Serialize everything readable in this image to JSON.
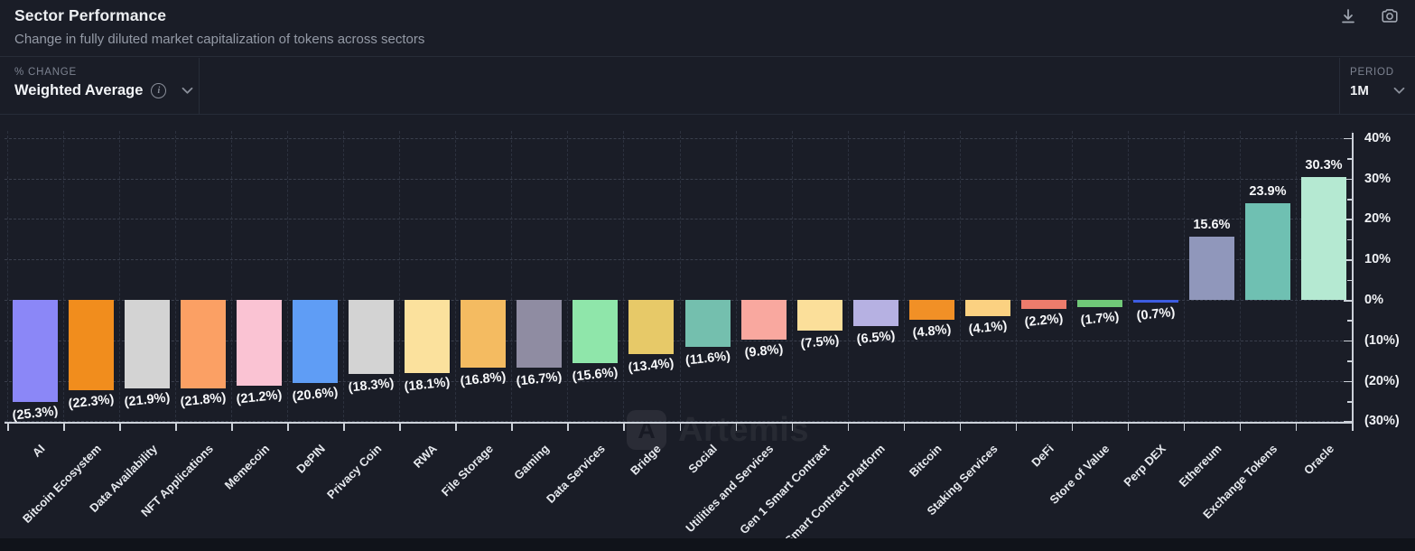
{
  "header": {
    "title": "Sector Performance",
    "subtitle": "Change in fully diluted market capitalization of tokens across sectors"
  },
  "controls": {
    "metric_label": "% CHANGE",
    "metric_value": "Weighted Average",
    "period_label": "PERIOD",
    "period_value": "1M"
  },
  "watermark": {
    "logo_letter": "A",
    "text": "Artemis"
  },
  "chart_data": {
    "type": "bar",
    "title": "Sector Performance",
    "xlabel": "",
    "ylabel": "% change",
    "ylim": [
      -30,
      40
    ],
    "grid": true,
    "legend": "none",
    "y_ticks": [
      {
        "v": 40,
        "label": "40%"
      },
      {
        "v": 30,
        "label": "30%"
      },
      {
        "v": 20,
        "label": "20%"
      },
      {
        "v": 10,
        "label": "10%"
      },
      {
        "v": 0,
        "label": "0%"
      },
      {
        "v": -10,
        "label": "(10%)"
      },
      {
        "v": -20,
        "label": "(20%)"
      },
      {
        "v": -30,
        "label": "(30%)"
      }
    ],
    "categories": [
      "AI",
      "Bitcoin Ecosystem",
      "Data Availability",
      "NFT Applications",
      "Memecoin",
      "DePIN",
      "Privacy Coin",
      "RWA",
      "File Storage",
      "Gaming",
      "Data Services",
      "Bridge",
      "Social",
      "Utilities and Services",
      "Gen 1 Smart Contract",
      "Smart Contract Platform",
      "Bitcoin",
      "Staking Services",
      "DeFi",
      "Store of Value",
      "Perp DEX",
      "Ethereum",
      "Exchange Tokens",
      "Oracle"
    ],
    "values": [
      -25.3,
      -22.3,
      -21.9,
      -21.8,
      -21.2,
      -20.6,
      -18.3,
      -18.1,
      -16.8,
      -16.7,
      -15.6,
      -13.4,
      -11.6,
      -9.8,
      -7.5,
      -6.5,
      -4.8,
      -4.1,
      -2.2,
      -1.7,
      -0.7,
      15.6,
      23.9,
      30.3
    ],
    "value_labels": [
      "(25.3%)",
      "(22.3%)",
      "(21.9%)",
      "(21.8%)",
      "(21.2%)",
      "(20.6%)",
      "(18.3%)",
      "(18.1%)",
      "(16.8%)",
      "(16.7%)",
      "(15.6%)",
      "(13.4%)",
      "(11.6%)",
      "(9.8%)",
      "(7.5%)",
      "(6.5%)",
      "(4.8%)",
      "(4.1%)",
      "(2.2%)",
      "(1.7%)",
      "(0.7%)",
      "15.6%",
      "23.9%",
      "30.3%"
    ],
    "colors": [
      "#8b87f7",
      "#f18d1d",
      "#d3d3d3",
      "#fba064",
      "#fac3d3",
      "#5f9df5",
      "#d3d3d3",
      "#fbe19d",
      "#f4bb61",
      "#8f8ca2",
      "#8fe6aa",
      "#e7c968",
      "#74bfae",
      "#f9a89f",
      "#fbdf9a",
      "#b6b1e2",
      "#f19026",
      "#fbd181",
      "#ec7c6c",
      "#70c878",
      "#3d5de2",
      "#9097bb",
      "#6fc0b2",
      "#b5e9d2"
    ]
  }
}
